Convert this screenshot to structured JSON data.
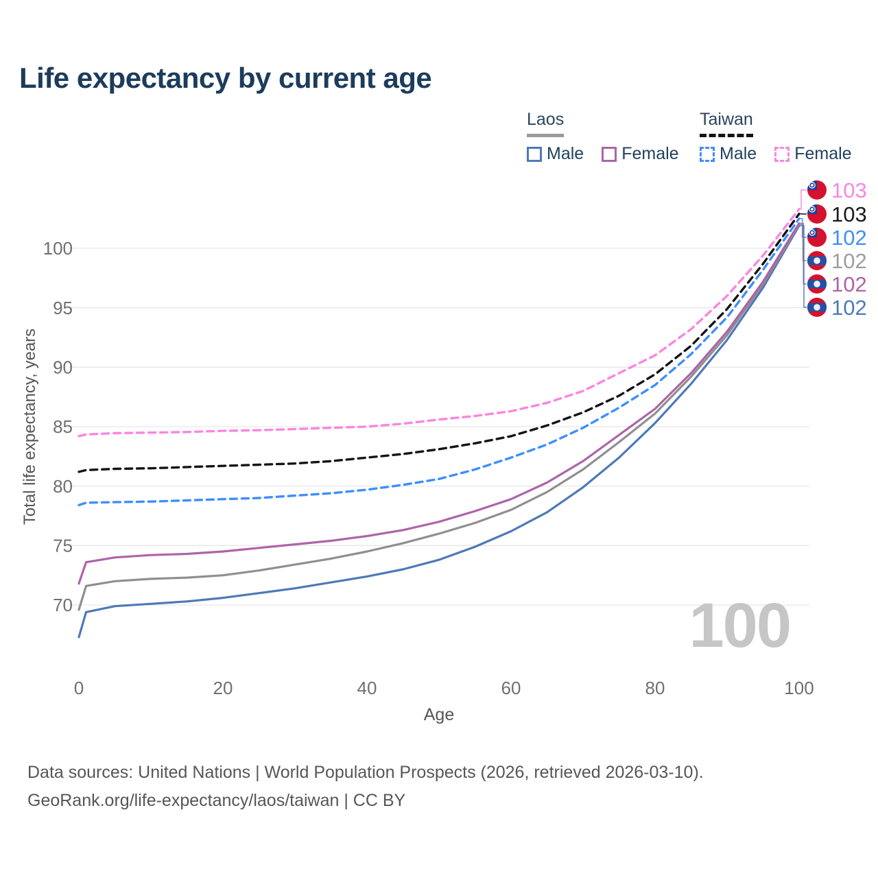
{
  "title": "Life expectancy by current age",
  "legend": {
    "groups": [
      {
        "name": "Laos",
        "line_style": "solid",
        "underline_color": "#9a9a9a",
        "entries": [
          {
            "label": "Male",
            "color": "#4d79b8"
          },
          {
            "label": "Female",
            "color": "#ad64a8"
          }
        ]
      },
      {
        "name": "Taiwan",
        "line_style": "dashed",
        "underline_color": "#141414",
        "entries": [
          {
            "label": "Male",
            "color": "#3f8efc"
          },
          {
            "label": "Female",
            "color": "#f986e0"
          }
        ]
      }
    ]
  },
  "chart_data": {
    "type": "line",
    "title": "Life expectancy by current age",
    "xlabel": "Age",
    "ylabel": "Total life expectancy, years",
    "x_ticks": [
      0,
      20,
      40,
      60,
      80,
      100
    ],
    "y_ticks": [
      70,
      75,
      80,
      85,
      90,
      95,
      100
    ],
    "xlim": [
      0,
      100
    ],
    "ylim": [
      66.5,
      104
    ],
    "grid": "horizontal",
    "legend_position": "top-right",
    "x": [
      0,
      1,
      5,
      10,
      15,
      20,
      25,
      30,
      35,
      40,
      45,
      50,
      55,
      60,
      65,
      70,
      75,
      80,
      85,
      90,
      95,
      100
    ],
    "series": [
      {
        "name": "Laos Male",
        "country": "Laos",
        "sex": "Male",
        "style": "solid",
        "color": "#4d79b8",
        "values": [
          67.3,
          69.4,
          69.9,
          70.1,
          70.3,
          70.6,
          71.0,
          71.4,
          71.9,
          72.4,
          73.0,
          73.8,
          74.9,
          76.2,
          77.8,
          79.9,
          82.4,
          85.3,
          88.6,
          92.3,
          96.7,
          101.9
        ]
      },
      {
        "name": "Laos",
        "country": "Laos",
        "sex": "Both",
        "style": "solid",
        "color": "#8f8f8f",
        "values": [
          69.6,
          71.6,
          72.0,
          72.2,
          72.3,
          72.5,
          72.9,
          73.4,
          73.9,
          74.5,
          75.2,
          76.0,
          76.9,
          78.0,
          79.5,
          81.4,
          83.7,
          86.1,
          89.2,
          92.7,
          97.0,
          102.0
        ]
      },
      {
        "name": "Laos Female",
        "country": "Laos",
        "sex": "Female",
        "style": "solid",
        "color": "#ad64a8",
        "values": [
          71.8,
          73.6,
          74.0,
          74.2,
          74.3,
          74.5,
          74.8,
          75.1,
          75.4,
          75.8,
          76.3,
          77.0,
          77.9,
          78.9,
          80.3,
          82.1,
          84.3,
          86.5,
          89.5,
          93.0,
          97.2,
          102.1
        ]
      },
      {
        "name": "Taiwan Male",
        "country": "Taiwan",
        "sex": "Male",
        "style": "dashed",
        "color": "#3f8efc",
        "values": [
          78.4,
          78.6,
          78.65,
          78.7,
          78.8,
          78.9,
          79.0,
          79.2,
          79.4,
          79.7,
          80.1,
          80.6,
          81.4,
          82.4,
          83.5,
          84.9,
          86.6,
          88.5,
          91.1,
          94.2,
          98.2,
          102.5
        ]
      },
      {
        "name": "Taiwan",
        "country": "Taiwan",
        "sex": "Both",
        "style": "dashed",
        "color": "#141414",
        "values": [
          81.2,
          81.35,
          81.45,
          81.5,
          81.6,
          81.7,
          81.8,
          81.9,
          82.1,
          82.4,
          82.7,
          83.1,
          83.6,
          84.2,
          85.1,
          86.2,
          87.6,
          89.4,
          91.8,
          94.9,
          98.7,
          102.9
        ]
      },
      {
        "name": "Taiwan Female",
        "country": "Taiwan",
        "sex": "Female",
        "style": "dashed",
        "color": "#f986e0",
        "values": [
          84.2,
          84.35,
          84.45,
          84.5,
          84.55,
          84.65,
          84.7,
          84.8,
          84.9,
          85.0,
          85.25,
          85.6,
          85.9,
          86.3,
          87.0,
          88.0,
          89.5,
          91.0,
          93.2,
          96.0,
          99.4,
          103.3
        ]
      }
    ]
  },
  "end_labels": [
    {
      "value": "103",
      "flag": "taiwan",
      "series": 5,
      "color": "#f986e0"
    },
    {
      "value": "103",
      "flag": "taiwan",
      "series": 4,
      "color": "#1a1a1a"
    },
    {
      "value": "102",
      "flag": "taiwan",
      "series": 3,
      "color": "#3f8efc"
    },
    {
      "value": "102",
      "flag": "laos",
      "series": 1,
      "color": "#9e9e9e"
    },
    {
      "value": "102",
      "flag": "laos",
      "series": 2,
      "color": "#ad64a8"
    },
    {
      "value": "102",
      "flag": "laos",
      "series": 0,
      "color": "#4d79b8"
    }
  ],
  "flag_colors": {
    "red": "#d5122d",
    "laos_blue": "#2351a5",
    "taiwan_blue": "#1e3f9e",
    "white": "#f2f2f4"
  },
  "watermark": "100",
  "footer": {
    "line1": "Data sources: United Nations | World Population Prospects (2026, retrieved 2026-03-10).",
    "line2": "GeoRank.org/life-expectancy/laos/taiwan | CC BY"
  }
}
